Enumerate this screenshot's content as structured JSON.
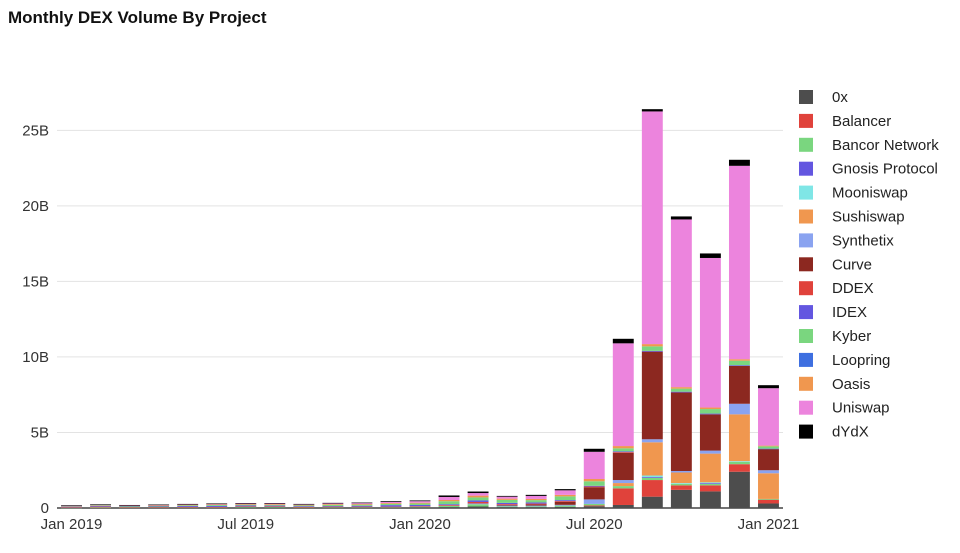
{
  "chart_data": {
    "type": "bar",
    "stacked": true,
    "title": "Monthly DEX Volume By Project",
    "xlabel": "",
    "ylabel": "",
    "ylim": [
      0,
      28000000000
    ],
    "y_ticks": [
      {
        "value": 0,
        "label": "0"
      },
      {
        "value": 5000000000,
        "label": "5B"
      },
      {
        "value": 10000000000,
        "label": "10B"
      },
      {
        "value": 15000000000,
        "label": "15B"
      },
      {
        "value": 20000000000,
        "label": "20B"
      },
      {
        "value": 25000000000,
        "label": "25B"
      }
    ],
    "x_ticks": [
      {
        "index": 0,
        "label": "Jan 2019"
      },
      {
        "index": 6,
        "label": "Jul 2019"
      },
      {
        "index": 12,
        "label": "Jan 2020"
      },
      {
        "index": 18,
        "label": "Jul 2020"
      },
      {
        "index": 24,
        "label": "Jan 2021"
      }
    ],
    "grid": true,
    "legend_position": "right",
    "categories": [
      "2019-01",
      "2019-02",
      "2019-03",
      "2019-04",
      "2019-05",
      "2019-06",
      "2019-07",
      "2019-08",
      "2019-09",
      "2019-10",
      "2019-11",
      "2019-12",
      "2020-01",
      "2020-02",
      "2020-03",
      "2020-04",
      "2020-05",
      "2020-06",
      "2020-07",
      "2020-08",
      "2020-09",
      "2020-10",
      "2020-11",
      "2020-12",
      "2021-01"
    ],
    "series": [
      {
        "name": "0x",
        "color": "#4d4d4d",
        "values": [
          0.01,
          0.01,
          0.01,
          0.02,
          0.02,
          0.02,
          0.03,
          0.03,
          0.02,
          0.03,
          0.03,
          0.03,
          0.05,
          0.06,
          0.1,
          0.06,
          0.06,
          0.08,
          0.12,
          0.2,
          0.75,
          1.2,
          1.1,
          2.4,
          0.3
        ]
      },
      {
        "name": "Balancer",
        "color": "#e0423b",
        "values": [
          0,
          0,
          0,
          0,
          0,
          0,
          0,
          0,
          0,
          0,
          0,
          0,
          0,
          0,
          0,
          0,
          0,
          0,
          0.05,
          1.1,
          1.1,
          0.3,
          0.4,
          0.5,
          0.25
        ]
      },
      {
        "name": "Bancor Network",
        "color": "#7ad67f",
        "values": [
          0.02,
          0.03,
          0.03,
          0.03,
          0.03,
          0.03,
          0.05,
          0.05,
          0.03,
          0.03,
          0.03,
          0.03,
          0.04,
          0.08,
          0.15,
          0.05,
          0.05,
          0.08,
          0.1,
          0.15,
          0.15,
          0.1,
          0.1,
          0.15,
          0.05
        ]
      },
      {
        "name": "Gnosis Protocol",
        "color": "#6356e0",
        "values": [
          0,
          0,
          0,
          0,
          0,
          0,
          0,
          0,
          0,
          0,
          0,
          0,
          0,
          0,
          0,
          0,
          0,
          0,
          0,
          0,
          0.05,
          0,
          0.05,
          0,
          0
        ]
      },
      {
        "name": "Mooniswap",
        "color": "#7fe6e6",
        "values": [
          0,
          0,
          0,
          0,
          0,
          0,
          0,
          0,
          0,
          0,
          0,
          0,
          0,
          0,
          0,
          0,
          0,
          0,
          0,
          0,
          0.1,
          0.05,
          0.05,
          0.05,
          0
        ]
      },
      {
        "name": "Sushiswap",
        "color": "#f0974f",
        "values": [
          0,
          0,
          0,
          0,
          0,
          0,
          0,
          0,
          0,
          0,
          0,
          0,
          0,
          0,
          0,
          0,
          0,
          0,
          0,
          0.2,
          2.2,
          0.7,
          1.9,
          3.1,
          1.7
        ]
      },
      {
        "name": "Synthetix",
        "color": "#8aa3f0",
        "values": [
          0,
          0,
          0,
          0,
          0,
          0,
          0,
          0,
          0,
          0,
          0,
          0,
          0,
          0,
          0.05,
          0.05,
          0.05,
          0.05,
          0.3,
          0.2,
          0.2,
          0.1,
          0.2,
          0.7,
          0.2
        ]
      },
      {
        "name": "Curve",
        "color": "#8c2820",
        "values": [
          0,
          0,
          0,
          0,
          0,
          0,
          0,
          0,
          0,
          0,
          0,
          0,
          0,
          0,
          0,
          0.05,
          0.08,
          0.2,
          0.8,
          1.8,
          5.8,
          5.2,
          2.4,
          2.5,
          1.4
        ]
      },
      {
        "name": "DDEX",
        "color": "#e0423b",
        "values": [
          0.02,
          0.05,
          0.02,
          0.01,
          0.02,
          0.02,
          0.03,
          0.03,
          0.02,
          0.03,
          0.03,
          0.03,
          0.03,
          0.05,
          0.1,
          0.05,
          0.05,
          0.05,
          0.05,
          0.05,
          0,
          0,
          0,
          0,
          0
        ]
      },
      {
        "name": "IDEX",
        "color": "#6356e0",
        "values": [
          0.05,
          0.05,
          0.04,
          0.04,
          0.06,
          0.07,
          0.06,
          0.05,
          0.05,
          0.04,
          0.06,
          0.1,
          0.08,
          0.06,
          0.1,
          0.08,
          0.08,
          0.06,
          0.05,
          0.05,
          0.05,
          0.05,
          0.05,
          0.05,
          0.03
        ]
      },
      {
        "name": "Kyber",
        "color": "#7ad67f",
        "values": [
          0.02,
          0.03,
          0.03,
          0.04,
          0.05,
          0.06,
          0.05,
          0.05,
          0.05,
          0.08,
          0.07,
          0.09,
          0.1,
          0.2,
          0.2,
          0.2,
          0.15,
          0.25,
          0.3,
          0.2,
          0.3,
          0.2,
          0.3,
          0.3,
          0.15
        ]
      },
      {
        "name": "Loopring",
        "color": "#3e6fe0",
        "values": [
          0,
          0,
          0,
          0,
          0,
          0,
          0,
          0,
          0,
          0,
          0,
          0,
          0,
          0,
          0,
          0,
          0,
          0,
          0,
          0,
          0,
          0,
          0,
          0,
          0
        ]
      },
      {
        "name": "Oasis",
        "color": "#f0974f",
        "values": [
          0.03,
          0.04,
          0.04,
          0.05,
          0.05,
          0.05,
          0.05,
          0.05,
          0.04,
          0.05,
          0.05,
          0.05,
          0.05,
          0.08,
          0.12,
          0.08,
          0.08,
          0.1,
          0.15,
          0.15,
          0.15,
          0.1,
          0.1,
          0.1,
          0.05
        ]
      },
      {
        "name": "Uniswap",
        "color": "#ec84dd",
        "values": [
          0.01,
          0.01,
          0.01,
          0.02,
          0.02,
          0.02,
          0.03,
          0.04,
          0.04,
          0.05,
          0.06,
          0.07,
          0.1,
          0.2,
          0.17,
          0.13,
          0.2,
          0.3,
          1.8,
          6.8,
          15.4,
          11.1,
          9.9,
          12.8,
          3.8
        ]
      },
      {
        "name": "dYdX",
        "color": "#000000",
        "values": [
          0.02,
          0.02,
          0.02,
          0.02,
          0.02,
          0.03,
          0.03,
          0.03,
          0.02,
          0.03,
          0.03,
          0.05,
          0.05,
          0.1,
          0.1,
          0.05,
          0.07,
          0.08,
          0.2,
          0.3,
          0.15,
          0.2,
          0.3,
          0.4,
          0.2
        ]
      }
    ],
    "value_unit_note": "values in billions"
  }
}
